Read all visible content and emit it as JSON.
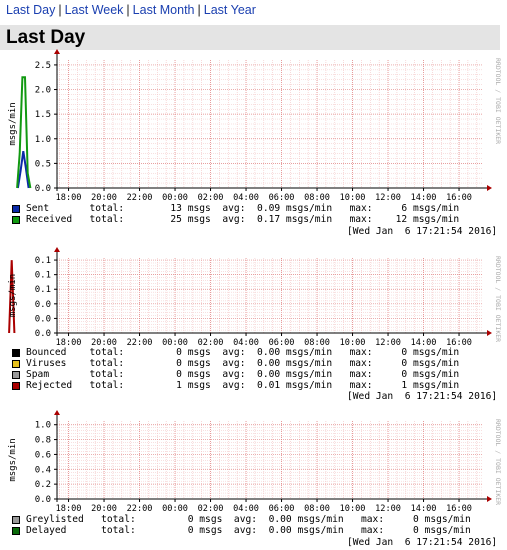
{
  "nav": {
    "links": [
      "Last Day",
      "Last Week",
      "Last Month",
      "Last Year"
    ],
    "separator": "|"
  },
  "page_title": "Last Day",
  "colors": {
    "grid_minor": "#f2c2c2",
    "grid_major": "#e08080",
    "axis": "#000000",
    "axis_arrow": "#aa0000",
    "sent": "#0b2aa8",
    "received": "#119911",
    "bounced": "#000000",
    "viruses": "#e8c21e",
    "spam": "#999999",
    "rejected": "#aa0000",
    "greylisted": "#999999",
    "delayed": "#0a6a0a"
  },
  "chart_data": [
    {
      "type": "line",
      "ylabel": "msgs/min",
      "y_ticks": [
        "0.0",
        "0.5",
        "1.0",
        "1.5",
        "2.0",
        "2.5"
      ],
      "ylim": [
        0,
        2.6
      ],
      "x_ticks": [
        "18:00",
        "20:00",
        "22:00",
        "00:00",
        "02:00",
        "04:00",
        "06:00",
        "08:00",
        "10:00",
        "12:00",
        "14:00",
        "16:00"
      ],
      "watermark": "RRDTOOL / TOBI OETIKER",
      "series": [
        {
          "name": "Sent",
          "color": "#0b2aa8",
          "points": [
            [
              15.15,
              0
            ],
            [
              15.3,
              0.35
            ],
            [
              15.45,
              0.75
            ],
            [
              15.6,
              0.4
            ],
            [
              15.75,
              0
            ]
          ]
        },
        {
          "name": "Received",
          "color": "#119911",
          "points": [
            [
              15.1,
              0
            ],
            [
              15.25,
              0.7
            ],
            [
              15.4,
              2.25
            ],
            [
              15.55,
              2.25
            ],
            [
              15.7,
              0.3
            ],
            [
              15.85,
              0
            ]
          ]
        }
      ],
      "legend": [
        {
          "swatch": "#0b2aa8",
          "text": "Sent       total:        13 msgs  avg:  0.09 msgs/min   max:     6 msgs/min"
        },
        {
          "swatch": "#119911",
          "text": "Received   total:        25 msgs  avg:  0.17 msgs/min   max:    12 msgs/min"
        }
      ],
      "timestamp": "[Wed Jan  6 17:21:54 2016]"
    },
    {
      "type": "line",
      "ylabel": "msgs/min",
      "y_ticks": [
        "0.0",
        "0.0",
        "0.0",
        "0.1",
        "0.1",
        "0.1"
      ],
      "ylim": [
        0,
        0.12
      ],
      "x_ticks": [
        "18:00",
        "20:00",
        "22:00",
        "00:00",
        "02:00",
        "04:00",
        "06:00",
        "08:00",
        "10:00",
        "12:00",
        "14:00",
        "16:00"
      ],
      "watermark": "RRDTOOL / TOBI OETIKER",
      "series": [
        {
          "name": "Rejected",
          "color": "#aa0000",
          "points": [
            [
              14.65,
              0
            ],
            [
              14.8,
              0.1167
            ],
            [
              14.95,
              0
            ]
          ]
        }
      ],
      "legend": [
        {
          "swatch": "#000000",
          "text": "Bounced    total:         0 msgs  avg:  0.00 msgs/min   max:     0 msgs/min"
        },
        {
          "swatch": "#e8c21e",
          "text": "Viruses    total:         0 msgs  avg:  0.00 msgs/min   max:     0 msgs/min"
        },
        {
          "swatch": "#999999",
          "text": "Spam       total:         0 msgs  avg:  0.00 msgs/min   max:     0 msgs/min"
        },
        {
          "swatch": "#aa0000",
          "text": "Rejected   total:         1 msgs  avg:  0.01 msgs/min   max:     1 msgs/min"
        }
      ],
      "timestamp": "[Wed Jan  6 17:21:54 2016]"
    },
    {
      "type": "line",
      "ylabel": "msgs/min",
      "y_ticks": [
        "0.0",
        "0.2",
        "0.4",
        "0.6",
        "0.8",
        "1.0"
      ],
      "ylim": [
        0,
        1.05
      ],
      "x_ticks": [
        "18:00",
        "20:00",
        "22:00",
        "00:00",
        "02:00",
        "04:00",
        "06:00",
        "08:00",
        "10:00",
        "12:00",
        "14:00",
        "16:00"
      ],
      "watermark": "RRDTOOL / TOBI OETIKER",
      "series": [],
      "legend": [
        {
          "swatch": "#999999",
          "text": "Greylisted   total:         0 msgs  avg:  0.00 msgs/min   max:     0 msgs/min"
        },
        {
          "swatch": "#0a6a0a",
          "text": "Delayed      total:         0 msgs  avg:  0.00 msgs/min   max:     0 msgs/min"
        }
      ],
      "timestamp": "[Wed Jan  6 17:21:54 2016]"
    }
  ]
}
